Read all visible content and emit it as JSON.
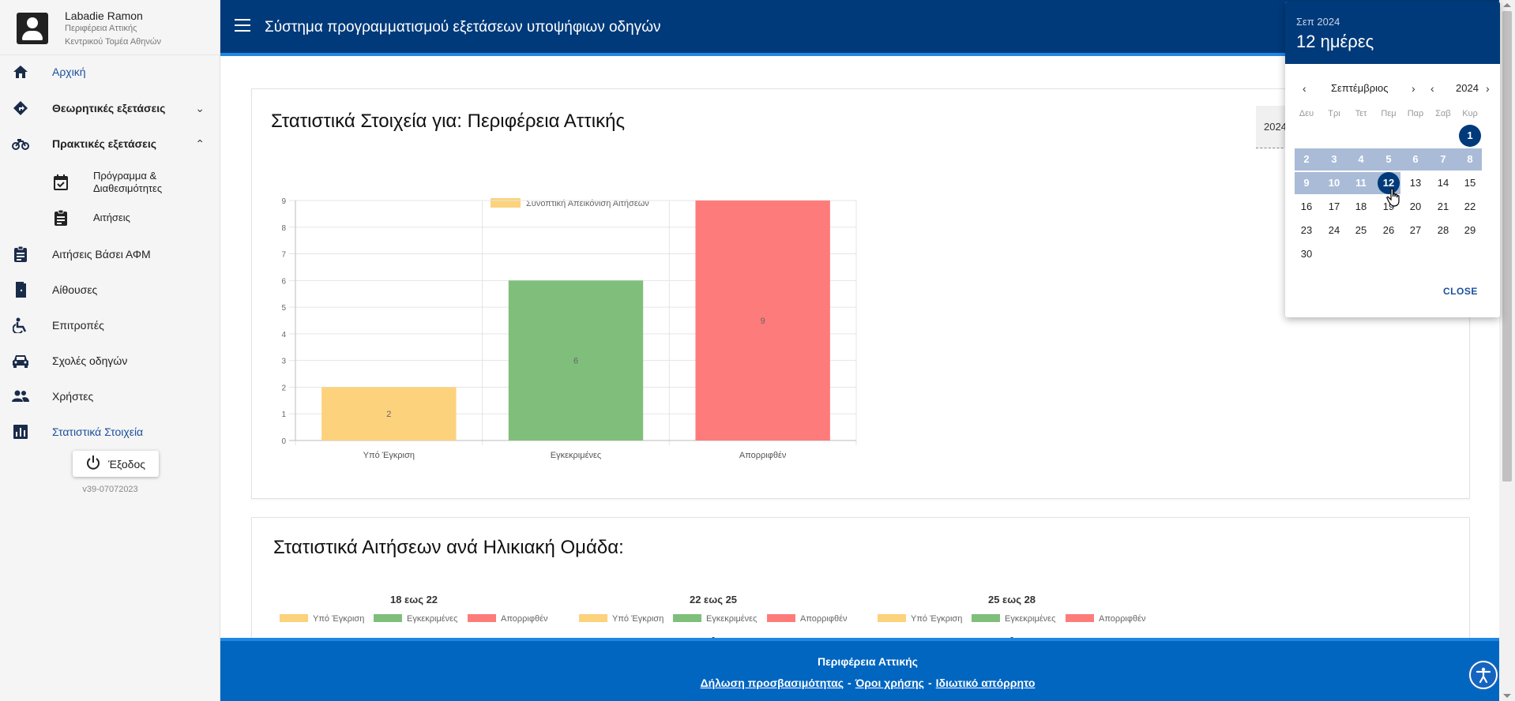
{
  "user": {
    "name": "Labadie Ramon",
    "region": "Περιφέρεια Αττικής",
    "sector": "Κεντρικού Τομέα Αθηνών"
  },
  "nav": {
    "home": "Αρχική",
    "theory": "Θεωρητικές εξετάσεις",
    "practical": "Πρακτικές εξετάσεις",
    "schedule": "Πρόγραμμα & Διαθεσιμότητες",
    "applications": "Αιτήσεις",
    "afm_applications": "Αιτήσεις Βάσει ΑΦΜ",
    "rooms": "Αίθουσες",
    "committees": "Επιτροπές",
    "schools": "Σχολές οδηγών",
    "users": "Χρήστες",
    "stats": "Στατιστικά Στοιχεία",
    "logout": "Έξοδος",
    "version": "v39-07072023"
  },
  "header": {
    "title": "Σύστημα προγραμματισμού εξετάσεων υποψήφιων οδηγών"
  },
  "stats_card": {
    "title": "Στατιστικά Στοιχεία για: Περιφέρεια Αττικής",
    "year_value": "2024"
  },
  "age_card": {
    "title": "Στατιστικά Αιτήσεων ανά Ηλικιακή Ομάδα:",
    "groups": [
      {
        "label": "18 εως 22"
      },
      {
        "label": "22 εως 25"
      },
      {
        "label": "25 εως 28"
      }
    ],
    "legend": [
      "Υπό Έγκριση",
      "Εγκεκριμένες",
      "Απορριφθέν"
    ]
  },
  "chart_data": {
    "type": "bar",
    "legend": "Συνοπτική Απεικόνιση Αιτήσεων",
    "categories": [
      "Υπό Έγκριση",
      "Εγκεκριμένες",
      "Απορριφθέν"
    ],
    "values": [
      2,
      6,
      9
    ],
    "colors": [
      "#fcd27c",
      "#7fbf7b",
      "#fe7b7b"
    ],
    "ylim": [
      0,
      9
    ],
    "yticks": [
      0,
      1,
      2,
      3,
      4,
      5,
      6,
      7,
      8,
      9
    ],
    "grid": true,
    "legend_position": "top"
  },
  "footer": {
    "region": "Περιφέρεια Αττικής",
    "link_accessibility": "Δήλωση προσβασιμότητας",
    "link_terms": "Όροι χρήσης",
    "link_privacy": "Ιδιωτικό απόρρητο",
    "separator": "-"
  },
  "picker": {
    "header_year": "Σεπ 2024",
    "header_selection": "12 ημέρες",
    "month_label": "Σεπτέμβριος",
    "year_label": "2024",
    "weekdays": [
      "Δευ",
      "Τρι",
      "Τετ",
      "Πεμ",
      "Παρ",
      "Σαβ",
      "Κυρ"
    ],
    "first_weekday_offset": 6,
    "days_in_month": 30,
    "range_start": 1,
    "range_end": 12,
    "close": "CLOSE"
  },
  "icons": {
    "home": "home-icon",
    "theory": "road-sign-icon",
    "practical": "motorbike-icon",
    "schedule": "calendar-check-icon",
    "applications": "clipboard-icon",
    "rooms": "door-icon",
    "committees": "accessible-icon",
    "schools": "car-icon",
    "users": "people-icon",
    "stats": "bar-chart-icon"
  }
}
